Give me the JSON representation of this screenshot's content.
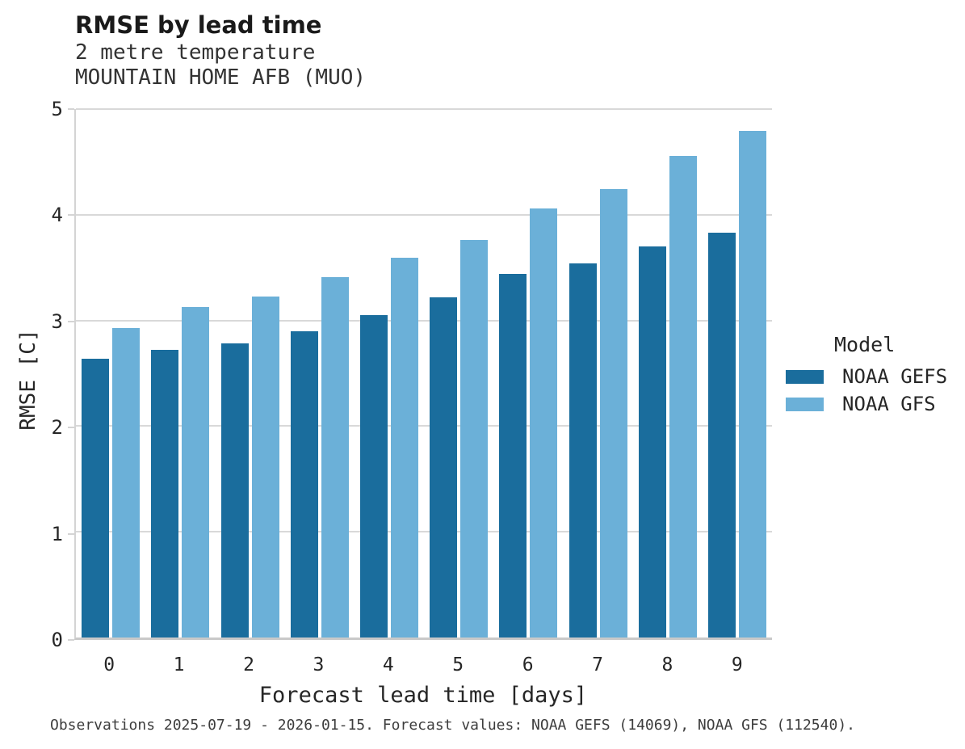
{
  "header": {
    "title": "RMSE by lead time",
    "subtitle_line1": "2 metre temperature",
    "subtitle_line2": "MOUNTAIN HOME AFB (MUO)"
  },
  "footer": {
    "caption": "Observations 2025-07-19 - 2026-01-15. Forecast values: NOAA GEFS (14069), NOAA GFS (112540)."
  },
  "colors": {
    "gefs_dark_blue": "#1A6D9D",
    "gfs_light_blue": "#6BB0D8",
    "gridline": "#D9D9D9",
    "axis_line": "#C9C9C9",
    "title_text": "#1A1A1A",
    "tick_text": "#262626"
  },
  "chart_data": {
    "type": "bar",
    "title": "RMSE by lead time",
    "subtitle": "2 metre temperature",
    "station": "MOUNTAIN HOME AFB (MUO)",
    "categories": [
      "0",
      "1",
      "2",
      "3",
      "4",
      "5",
      "6",
      "7",
      "8",
      "9"
    ],
    "series": [
      {
        "name": "NOAA GEFS",
        "color": "#1A6D9D",
        "values": [
          2.64,
          2.72,
          2.78,
          2.9,
          3.05,
          3.22,
          3.44,
          3.54,
          3.7,
          3.83
        ]
      },
      {
        "name": "NOAA GFS",
        "color": "#6BB0D8",
        "values": [
          2.93,
          3.13,
          3.23,
          3.41,
          3.59,
          3.76,
          4.06,
          4.24,
          4.56,
          4.79
        ]
      }
    ],
    "xlabel": "Forecast lead time [days]",
    "ylabel": "RMSE [C]",
    "ylim": [
      0,
      5
    ],
    "yticks": [
      0,
      1,
      2,
      3,
      4,
      5
    ],
    "grid": true,
    "legend_title": "Model",
    "legend_position": "right"
  }
}
